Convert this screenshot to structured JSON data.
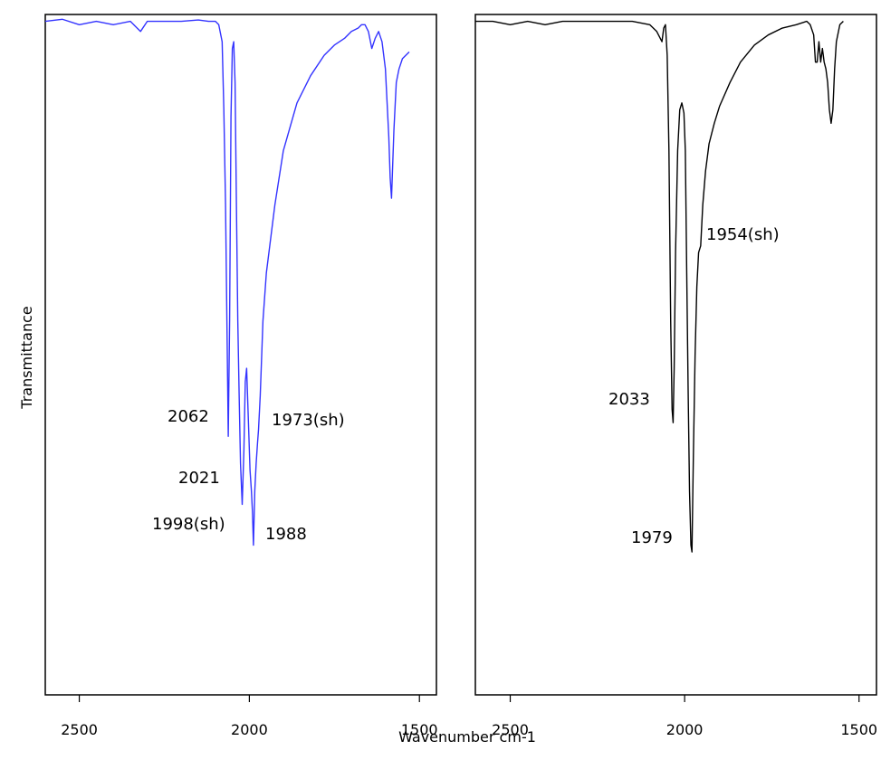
{
  "chart_data": [
    {
      "type": "line",
      "xlabel": "Wavenumber cm-1",
      "ylabel": "Transmittance",
      "xlim": [
        2600,
        1450
      ],
      "ylim": [
        0,
        1
      ],
      "x_ticks": [
        2500,
        2000,
        1500
      ],
      "grid": false,
      "series": [
        {
          "color": "#3333ff",
          "x": [
            2600,
            2550,
            2500,
            2450,
            2400,
            2350,
            2320,
            2300,
            2250,
            2200,
            2150,
            2120,
            2100,
            2090,
            2080,
            2075,
            2070,
            2066,
            2062,
            2058,
            2054,
            2050,
            2046,
            2042,
            2038,
            2034,
            2030,
            2026,
            2021,
            2016,
            2012,
            2008,
            2004,
            2000,
            1998,
            1994,
            1991,
            1988,
            1984,
            1980,
            1976,
            1973,
            1968,
            1960,
            1950,
            1940,
            1925,
            1900,
            1860,
            1820,
            1780,
            1750,
            1720,
            1700,
            1680,
            1670,
            1660,
            1650,
            1640,
            1630,
            1620,
            1610,
            1600,
            1595,
            1590,
            1586,
            1582,
            1575,
            1568,
            1560,
            1550,
            1540,
            1530
          ],
          "y": [
            0.99,
            0.993,
            0.985,
            0.99,
            0.985,
            0.99,
            0.975,
            0.99,
            0.99,
            0.99,
            0.992,
            0.99,
            0.99,
            0.985,
            0.96,
            0.86,
            0.72,
            0.55,
            0.38,
            0.55,
            0.85,
            0.95,
            0.96,
            0.9,
            0.72,
            0.55,
            0.44,
            0.34,
            0.28,
            0.36,
            0.46,
            0.48,
            0.42,
            0.36,
            0.33,
            0.3,
            0.27,
            0.22,
            0.3,
            0.34,
            0.37,
            0.39,
            0.44,
            0.55,
            0.62,
            0.66,
            0.72,
            0.8,
            0.87,
            0.91,
            0.94,
            0.955,
            0.965,
            0.975,
            0.98,
            0.985,
            0.985,
            0.975,
            0.95,
            0.965,
            0.975,
            0.96,
            0.92,
            0.87,
            0.82,
            0.76,
            0.73,
            0.83,
            0.9,
            0.92,
            0.935,
            0.94,
            0.945
          ]
        }
      ],
      "annotations": [
        "2062",
        "1973(sh)",
        "2021",
        "1998(sh)",
        "1988"
      ]
    },
    {
      "type": "line",
      "xlabel": "Wavenumber cm-1",
      "xlim": [
        2600,
        1450
      ],
      "ylim": [
        0,
        1
      ],
      "x_ticks": [
        2500,
        2000,
        1500
      ],
      "grid": false,
      "series": [
        {
          "color": "#000000",
          "x": [
            2600,
            2550,
            2500,
            2450,
            2400,
            2350,
            2300,
            2250,
            2200,
            2150,
            2100,
            2080,
            2070,
            2065,
            2060,
            2055,
            2050,
            2045,
            2040,
            2036,
            2033,
            2030,
            2026,
            2020,
            2014,
            2008,
            2002,
            1998,
            1994,
            1990,
            1986,
            1982,
            1979,
            1975,
            1970,
            1965,
            1960,
            1954,
            1948,
            1940,
            1930,
            1915,
            1900,
            1870,
            1840,
            1800,
            1760,
            1720,
            1680,
            1650,
            1640,
            1630,
            1625,
            1620,
            1615,
            1610,
            1605,
            1600,
            1595,
            1590,
            1585,
            1580,
            1575,
            1570,
            1565,
            1555,
            1545
          ],
          "y": [
            0.99,
            0.99,
            0.985,
            0.99,
            0.985,
            0.99,
            0.99,
            0.99,
            0.99,
            0.99,
            0.985,
            0.975,
            0.965,
            0.96,
            0.98,
            0.985,
            0.94,
            0.8,
            0.55,
            0.42,
            0.4,
            0.48,
            0.65,
            0.8,
            0.86,
            0.87,
            0.855,
            0.8,
            0.62,
            0.45,
            0.3,
            0.22,
            0.21,
            0.35,
            0.5,
            0.6,
            0.65,
            0.66,
            0.72,
            0.77,
            0.81,
            0.84,
            0.865,
            0.9,
            0.93,
            0.955,
            0.97,
            0.98,
            0.985,
            0.99,
            0.985,
            0.97,
            0.93,
            0.93,
            0.96,
            0.93,
            0.95,
            0.93,
            0.92,
            0.9,
            0.86,
            0.84,
            0.86,
            0.92,
            0.96,
            0.985,
            0.99
          ]
        }
      ],
      "annotations": [
        "1954(sh)",
        "2033",
        "1979"
      ]
    }
  ]
}
